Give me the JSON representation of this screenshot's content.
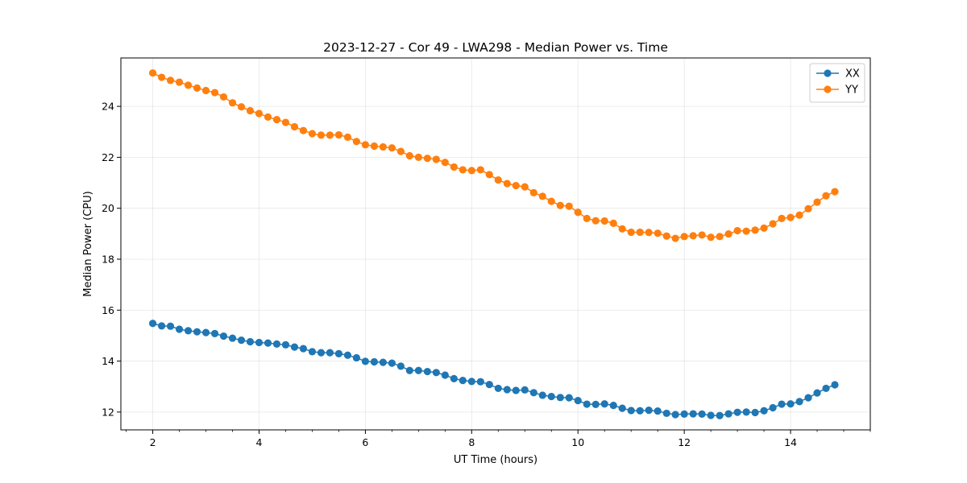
{
  "chart_data": {
    "type": "line",
    "title": "2023-12-27 - Cor 49 - LWA298 - Median Power vs. Time",
    "xlabel": "UT Time (hours)",
    "ylabel": "Median Power (CPU)",
    "xlim": [
      1.4,
      15.5
    ],
    "ylim": [
      11.3,
      25.9
    ],
    "xticks": [
      2,
      4,
      6,
      8,
      10,
      12,
      14
    ],
    "yticks": [
      12,
      14,
      16,
      18,
      20,
      22,
      24
    ],
    "grid": true,
    "legend_position": "top-right",
    "x": [
      2.0,
      2.167,
      2.333,
      2.5,
      2.667,
      2.833,
      3.0,
      3.167,
      3.333,
      3.5,
      3.667,
      3.833,
      4.0,
      4.167,
      4.333,
      4.5,
      4.667,
      4.833,
      5.0,
      5.167,
      5.333,
      5.5,
      5.667,
      5.833,
      6.0,
      6.167,
      6.333,
      6.5,
      6.667,
      6.833,
      7.0,
      7.167,
      7.333,
      7.5,
      7.667,
      7.833,
      8.0,
      8.167,
      8.333,
      8.5,
      8.667,
      8.833,
      9.0,
      9.167,
      9.333,
      9.5,
      9.667,
      9.833,
      10.0,
      10.167,
      10.333,
      10.5,
      10.667,
      10.833,
      11.0,
      11.167,
      11.333,
      11.5,
      11.667,
      11.833,
      12.0,
      12.167,
      12.333,
      12.5,
      12.667,
      12.833,
      13.0,
      13.167,
      13.333,
      13.5,
      13.667,
      13.833,
      14.0,
      14.167,
      14.333,
      14.5,
      14.667,
      14.833
    ],
    "series": [
      {
        "name": "XX",
        "color": "#1f77b4",
        "values": [
          15.48,
          15.38,
          15.37,
          15.25,
          15.19,
          15.15,
          15.12,
          15.08,
          14.98,
          14.9,
          14.82,
          14.76,
          14.73,
          14.71,
          14.67,
          14.64,
          14.55,
          14.49,
          14.37,
          14.33,
          14.33,
          14.29,
          14.23,
          14.13,
          13.99,
          13.97,
          13.95,
          13.92,
          13.8,
          13.63,
          13.63,
          13.59,
          13.55,
          13.45,
          13.31,
          13.24,
          13.2,
          13.19,
          13.08,
          12.93,
          12.88,
          12.85,
          12.87,
          12.76,
          12.66,
          12.61,
          12.57,
          12.56,
          12.45,
          12.31,
          12.3,
          12.32,
          12.26,
          12.15,
          12.06,
          12.05,
          12.07,
          12.04,
          11.95,
          11.9,
          11.92,
          11.93,
          11.92,
          11.87,
          11.86,
          11.93,
          11.99,
          12.0,
          11.98,
          12.05,
          12.17,
          12.31,
          12.32,
          12.41,
          12.56,
          12.75,
          12.93,
          13.07
        ]
      },
      {
        "name": "YY",
        "color": "#ff7f0e",
        "values": [
          25.31,
          25.14,
          25.02,
          24.95,
          24.83,
          24.72,
          24.62,
          24.54,
          24.37,
          24.14,
          23.98,
          23.83,
          23.72,
          23.58,
          23.48,
          23.37,
          23.2,
          23.05,
          22.93,
          22.87,
          22.87,
          22.88,
          22.79,
          22.62,
          22.49,
          22.44,
          22.41,
          22.37,
          22.23,
          22.06,
          22.0,
          21.96,
          21.92,
          21.8,
          21.62,
          21.51,
          21.48,
          21.51,
          21.32,
          21.11,
          20.97,
          20.89,
          20.84,
          20.61,
          20.47,
          20.27,
          20.11,
          20.08,
          19.84,
          19.6,
          19.51,
          19.5,
          19.41,
          19.19,
          19.06,
          19.06,
          19.05,
          19.02,
          18.91,
          18.82,
          18.89,
          18.92,
          18.95,
          18.86,
          18.89,
          18.99,
          19.12,
          19.1,
          19.14,
          19.22,
          19.39,
          19.6,
          19.64,
          19.73,
          19.98,
          20.24,
          20.49,
          20.65
        ]
      }
    ]
  }
}
